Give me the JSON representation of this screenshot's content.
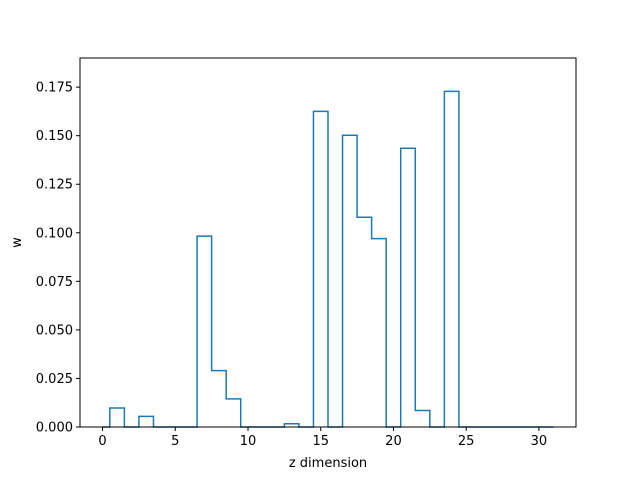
{
  "chart_data": {
    "type": "line",
    "title": "",
    "xlabel": "z dimension",
    "ylabel": "w",
    "xlim": [
      -1.55,
      32.55
    ],
    "ylim": [
      0,
      0.19
    ],
    "xticks": [
      0,
      5,
      10,
      15,
      20,
      25,
      30
    ],
    "xtick_labels": [
      "0",
      "5",
      "10",
      "15",
      "20",
      "25",
      "30"
    ],
    "yticks": [
      0.0,
      0.025,
      0.05,
      0.075,
      0.1,
      0.125,
      0.15,
      0.175
    ],
    "ytick_labels": [
      "0.000",
      "0.025",
      "0.050",
      "0.075",
      "0.100",
      "0.125",
      "0.150",
      "0.175"
    ],
    "grid": false,
    "legend": "none",
    "step_where": "mid",
    "series": [
      {
        "color": "#1f77b4",
        "x": [
          0,
          1,
          2,
          3,
          4,
          5,
          6,
          7,
          8,
          9,
          10,
          11,
          12,
          13,
          14,
          15,
          16,
          17,
          18,
          19,
          20,
          21,
          22,
          23,
          24,
          25,
          26,
          27,
          28,
          29,
          30,
          31
        ],
        "values": [
          0,
          0.0098,
          0,
          0.0055,
          0,
          0,
          0,
          0.0983,
          0.029,
          0.0145,
          0,
          0,
          0,
          0.0017,
          0,
          0.1625,
          0,
          0.1502,
          0.108,
          0.097,
          0,
          0.1435,
          0.0085,
          0,
          0.1728,
          0,
          0,
          0,
          0,
          0,
          0,
          0
        ]
      }
    ]
  }
}
